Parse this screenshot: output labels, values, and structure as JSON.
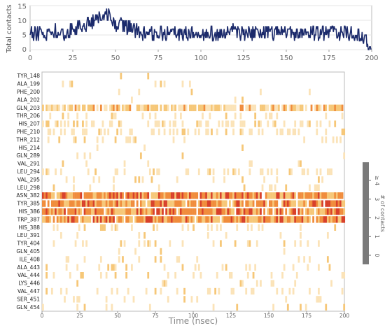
{
  "chart_data": [
    {
      "type": "line",
      "ylabel": "Total contacts",
      "xlim": [
        0,
        200
      ],
      "ylim": [
        0,
        15
      ],
      "x_ticks": [
        "0",
        "25",
        "50",
        "75",
        "100",
        "125",
        "150",
        "175",
        "200"
      ],
      "y_ticks": [
        "0",
        "5",
        "10",
        "15"
      ],
      "series": [
        {
          "color": "#1b2a6b",
          "x": [
            0,
            5,
            10,
            15,
            20,
            25,
            30,
            35,
            40,
            45,
            50,
            55,
            60,
            65,
            70,
            75,
            80,
            85,
            90,
            95,
            100,
            105,
            110,
            115,
            120,
            125,
            130,
            135,
            140,
            145,
            150,
            155,
            160,
            165,
            170,
            175,
            180,
            185,
            190,
            195,
            198,
            200
          ],
          "values": [
            5,
            6,
            5,
            6,
            5,
            7,
            8,
            9,
            11,
            12,
            9,
            8,
            7,
            6,
            6,
            5,
            6,
            6,
            5,
            6,
            6,
            6,
            5,
            6,
            6,
            6,
            6,
            5,
            6,
            6,
            6,
            5,
            6,
            6,
            5,
            6,
            6,
            6,
            5,
            4,
            2,
            0
          ]
        }
      ]
    },
    {
      "type": "heatmap",
      "xlabel": "Time (nsec)",
      "xlim": [
        0,
        200
      ],
      "x_ticks": [
        "0",
        "25",
        "50",
        "75",
        "100",
        "125",
        "150",
        "175",
        "200"
      ],
      "rows": [
        "TYR_148",
        "ALA_199",
        "PHE_200",
        "ALA_202",
        "GLN_203",
        "THR_206",
        "HIS_207",
        "PHE_210",
        "THR_212",
        "HIS_214",
        "GLN_289",
        "VAL_291",
        "LEU_294",
        "VAL_295",
        "LEU_298",
        "ASN_382",
        "TYR_385",
        "HIS_386",
        "TRP_387",
        "HIS_388",
        "LEU_391",
        "TYR_404",
        "GLN_405",
        "ILE_408",
        "ALA_443",
        "VAL_444",
        "LYS_446",
        "VAL_447",
        "SER_451",
        "GLN_454"
      ],
      "row_occupancy": [
        0.02,
        0.05,
        0.03,
        0.01,
        0.8,
        0.15,
        0.35,
        0.3,
        0.15,
        0.03,
        0.04,
        0.05,
        0.25,
        0.1,
        0.1,
        0.95,
        0.9,
        0.9,
        0.92,
        0.15,
        0.03,
        0.15,
        0.04,
        0.1,
        0.12,
        0.15,
        0.08,
        0.2,
        0.1,
        0.05
      ],
      "colorbar": {
        "label": "# of contacts",
        "ticks": [
          "0",
          "1",
          "2",
          "3",
          "≥ 4"
        ],
        "colors": [
          "#ffffff",
          "#fbe3b8",
          "#f6c778",
          "#f08c3c",
          "#d8402a"
        ]
      }
    }
  ]
}
